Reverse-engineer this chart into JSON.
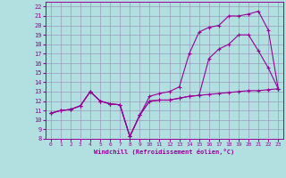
{
  "xlabel": "Windchill (Refroidissement éolien,°C)",
  "xlim": [
    -0.5,
    23.5
  ],
  "ylim": [
    8,
    22.5
  ],
  "xticks": [
    0,
    1,
    2,
    3,
    4,
    5,
    6,
    7,
    8,
    9,
    10,
    11,
    12,
    13,
    14,
    15,
    16,
    17,
    18,
    19,
    20,
    21,
    22,
    23
  ],
  "yticks": [
    8,
    9,
    10,
    11,
    12,
    13,
    14,
    15,
    16,
    17,
    18,
    19,
    20,
    21,
    22
  ],
  "bg_color": "#b2e0e0",
  "grid_color": "#9999bb",
  "line_color": "#990099",
  "line1_x": [
    0,
    1,
    2,
    3,
    4,
    5,
    6,
    7,
    8,
    9,
    10,
    11,
    12,
    13,
    14,
    15,
    16,
    17,
    18,
    19,
    20,
    21,
    22,
    23
  ],
  "line1_y": [
    10.7,
    11.0,
    11.1,
    11.5,
    13.0,
    12.0,
    11.7,
    11.6,
    8.25,
    10.5,
    12.0,
    12.1,
    12.1,
    12.3,
    12.5,
    12.6,
    12.7,
    12.8,
    12.9,
    13.0,
    13.1,
    13.1,
    13.2,
    13.3
  ],
  "line2_x": [
    0,
    1,
    2,
    3,
    4,
    5,
    6,
    7,
    8,
    9,
    10,
    11,
    12,
    13,
    14,
    15,
    16,
    17,
    18,
    19,
    20,
    21,
    22,
    23
  ],
  "line2_y": [
    10.7,
    11.0,
    11.1,
    11.5,
    13.0,
    12.0,
    11.7,
    11.6,
    8.25,
    10.5,
    12.0,
    12.1,
    12.1,
    12.3,
    12.5,
    12.6,
    16.5,
    17.5,
    18.0,
    19.0,
    19.0,
    17.3,
    15.5,
    13.3
  ],
  "line3_x": [
    0,
    1,
    2,
    3,
    4,
    5,
    6,
    7,
    8,
    9,
    10,
    11,
    12,
    13,
    14,
    15,
    16,
    17,
    18,
    19,
    20,
    21,
    22,
    23
  ],
  "line3_y": [
    10.7,
    11.0,
    11.1,
    11.5,
    13.0,
    12.0,
    11.7,
    11.6,
    8.25,
    10.5,
    12.5,
    12.8,
    13.0,
    13.5,
    17.0,
    19.3,
    19.8,
    20.0,
    21.0,
    21.0,
    21.2,
    21.5,
    19.5,
    13.3
  ]
}
